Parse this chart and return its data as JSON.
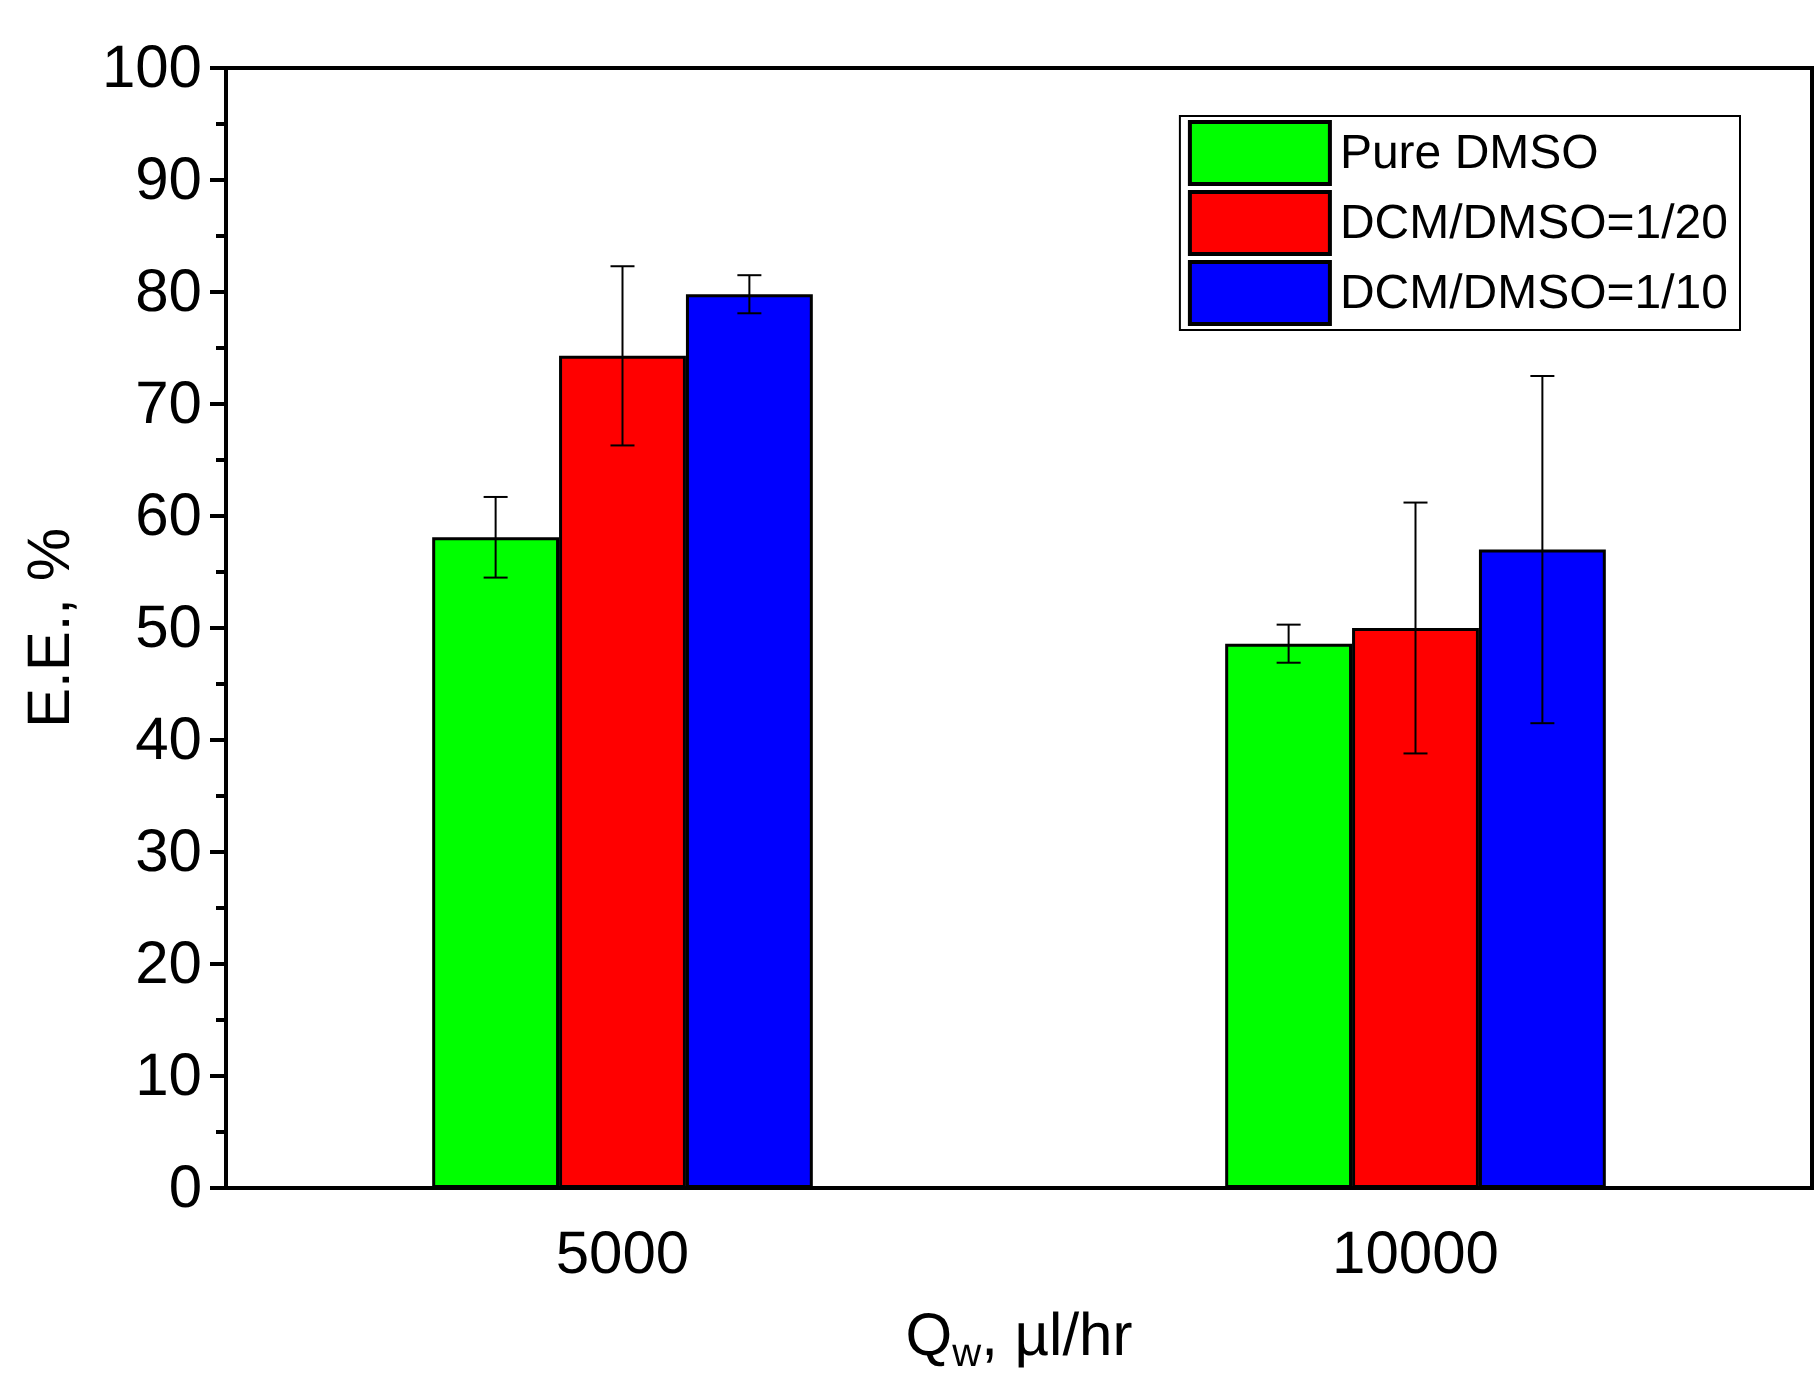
{
  "chart_data": {
    "type": "bar",
    "xlabel": "Q$_{w}$, µl/hr",
    "ylabel": "E.E., %",
    "categories": [
      "5000",
      "10000"
    ],
    "series": [
      {
        "name": "Pure DMSO",
        "color": "#00ff00",
        "values": [
          58.1,
          48.6
        ],
        "errors": [
          3.6,
          1.7
        ]
      },
      {
        "name": "DCM/DMSO=1/20",
        "color": "#ff0000",
        "values": [
          74.3,
          50.0
        ],
        "errors": [
          8.0,
          11.2
        ]
      },
      {
        "name": "DCM/DMSO=1/10",
        "color": "#0000ff",
        "values": [
          79.8,
          57.0
        ],
        "errors": [
          1.7,
          15.5
        ]
      }
    ],
    "ylim": [
      0,
      100
    ],
    "yticks": [
      0,
      10,
      20,
      30,
      40,
      50,
      60,
      70,
      80,
      90,
      100
    ],
    "grid": false,
    "legend": "top right"
  }
}
